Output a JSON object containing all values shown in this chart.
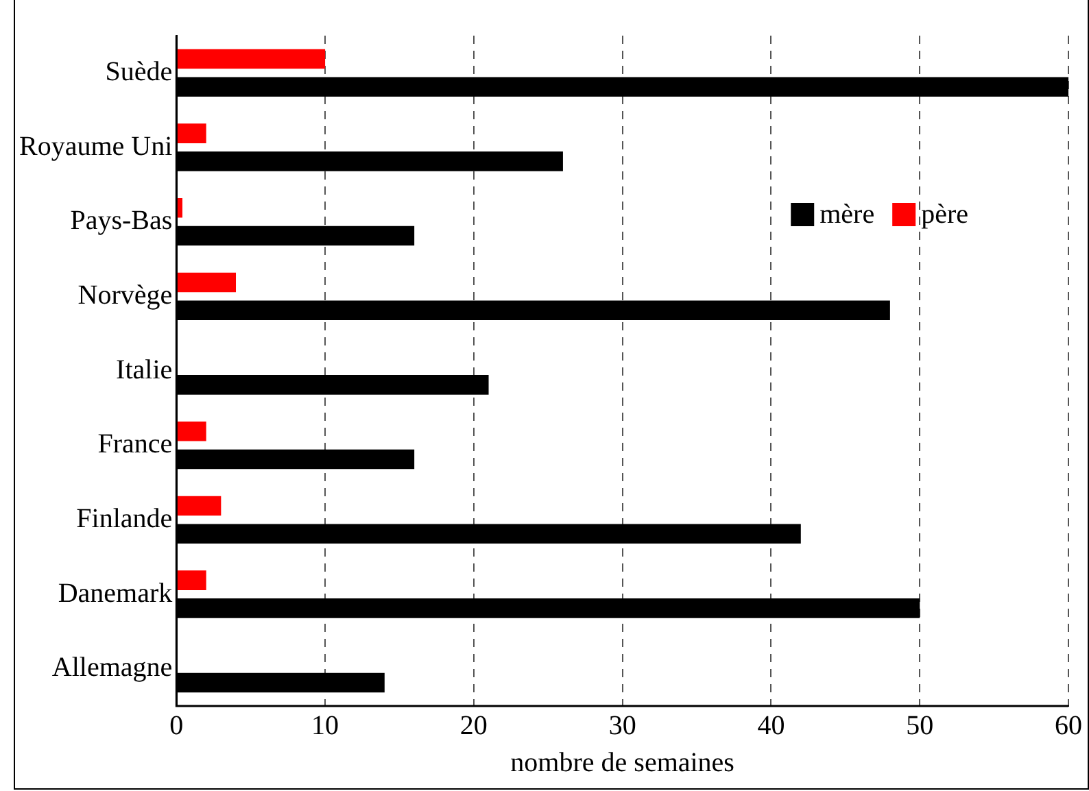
{
  "chart_data": {
    "type": "bar",
    "orientation": "horizontal",
    "xlabel": "nombre de semaines",
    "categories": [
      "Suède",
      "Royaume Uni",
      "Pays-Bas",
      "Norvège",
      "Italie",
      "France",
      "Finlande",
      "Danemark",
      "Allemagne"
    ],
    "series": [
      {
        "name": "mère",
        "color": "#000000",
        "values": [
          60,
          26,
          16,
          48,
          21,
          16,
          42,
          50,
          14
        ]
      },
      {
        "name": "père",
        "color": "#ff0000",
        "values": [
          10,
          2,
          0.4,
          4,
          0,
          2,
          3,
          2,
          0
        ]
      }
    ],
    "xlim": [
      0,
      60
    ],
    "xticks": [
      0,
      10,
      20,
      30,
      40,
      50,
      60
    ],
    "grid": "x",
    "legend": "top right"
  }
}
